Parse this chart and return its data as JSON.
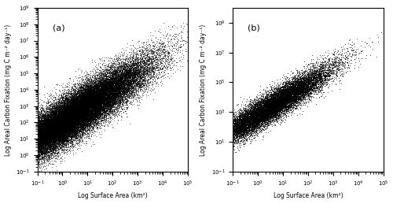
{
  "subplot_a_label": "(a)",
  "subplot_b_label": "(b)",
  "xlabel": "Log Surface Area (km²)",
  "ylabel": "Log Areal Carbon Fixation (mg C m⁻² day⁻¹)",
  "xlim": [
    0.1,
    100000
  ],
  "ylim_a": [
    0.1,
    1000000000.0
  ],
  "ylim_b": [
    0.1,
    10000000000.0
  ],
  "n_points_a": 60000,
  "n_points_b": 20000,
  "seed_a": 42,
  "seed_b": 123,
  "dot_size": 0.4,
  "dot_color": "black",
  "background": "white",
  "slope_a": 1.0,
  "intercept_a": 2.0,
  "noise_std_a": 0.7,
  "slope_b": 1.05,
  "intercept_b": 2.8,
  "noise_std_b": 0.5,
  "x_mean_a": 0.3,
  "x_sigma_a": 1.5,
  "x_mean_b": 0.5,
  "x_sigma_b": 1.2
}
